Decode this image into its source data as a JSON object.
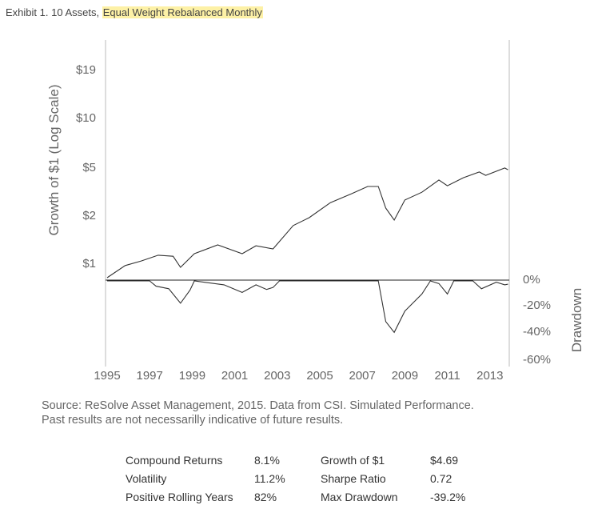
{
  "title": {
    "prefix": "Exhibit 1. 10 Assets, ",
    "highlight": "Equal Weight Rebalanced Monthly",
    "highlight_color": "#fdf1a6"
  },
  "chart_data": [
    {
      "type": "line",
      "ylabel": "Growth of $1 (Log Scale)",
      "yscale": "log",
      "yticks": [
        "$19",
        "$10",
        "$5",
        "$2",
        "$1"
      ],
      "xticks": [
        "1995",
        "1997",
        "1999",
        "2001",
        "2003",
        "2005",
        "2007",
        "2009",
        "2011",
        "2013"
      ],
      "xlim": [
        1995,
        2014
      ],
      "x": [
        1995.0,
        1995.85,
        1996.6,
        1997.4,
        1998.1,
        1998.45,
        1999.1,
        2000.2,
        2001.35,
        2002.0,
        2002.8,
        2003.75,
        2004.5,
        2005.5,
        2006.5,
        2007.25,
        2007.75,
        2008.1,
        2008.5,
        2009.0,
        2009.8,
        2010.6,
        2011.0,
        2011.75,
        2012.5,
        2012.8,
        2013.7,
        2013.85
      ],
      "values": [
        1.0,
        1.19,
        1.27,
        1.38,
        1.36,
        1.16,
        1.41,
        1.6,
        1.41,
        1.58,
        1.51,
        2.11,
        2.36,
        2.93,
        3.33,
        3.69,
        3.69,
        2.71,
        2.28,
        3.04,
        3.4,
        4.05,
        3.73,
        4.18,
        4.54,
        4.33,
        4.81,
        4.69
      ],
      "color": "#333333"
    },
    {
      "type": "line",
      "ylabel": "Drawdown",
      "yticks": [
        "0%",
        "-20%",
        "-40%",
        "-60%"
      ],
      "ylim": [
        -60,
        0
      ],
      "x": [
        1995.0,
        1997.0,
        1997.3,
        1997.9,
        1998.45,
        1998.9,
        1999.1,
        2000.5,
        2001.35,
        2002.0,
        2002.5,
        2002.8,
        2003.1,
        2007.75,
        2008.1,
        2008.5,
        2009.0,
        2009.8,
        2010.2,
        2010.6,
        2011.0,
        2011.3,
        2012.2,
        2012.6,
        2013.3,
        2013.7,
        2013.85
      ],
      "values": [
        0,
        0,
        -4,
        -6,
        -17,
        -7,
        0,
        -3,
        -8.8,
        -3,
        -6.5,
        -5,
        0,
        0,
        -31,
        -39.2,
        -23,
        -10,
        0,
        -2,
        -10,
        0,
        0,
        -6,
        -1,
        -3,
        -2.5
      ],
      "color": "#333333"
    }
  ],
  "source": {
    "line1": "Source: ReSolve Asset Management, 2015. Data from CSI. Simulated Performance.",
    "line2": "Past results are not necessarilly indicative of future results."
  },
  "stats": [
    {
      "l1": "Compound Returns",
      "v1": "8.1%",
      "l2": "Growth of $1",
      "v2": "$4.69"
    },
    {
      "l1": "Volatility",
      "v1": "11.2%",
      "l2": "Sharpe Ratio",
      "v2": "0.72"
    },
    {
      "l1": "Positive Rolling Years",
      "v1": "82%",
      "l2": "Max Drawdown",
      "v2": "-39.2%"
    }
  ]
}
